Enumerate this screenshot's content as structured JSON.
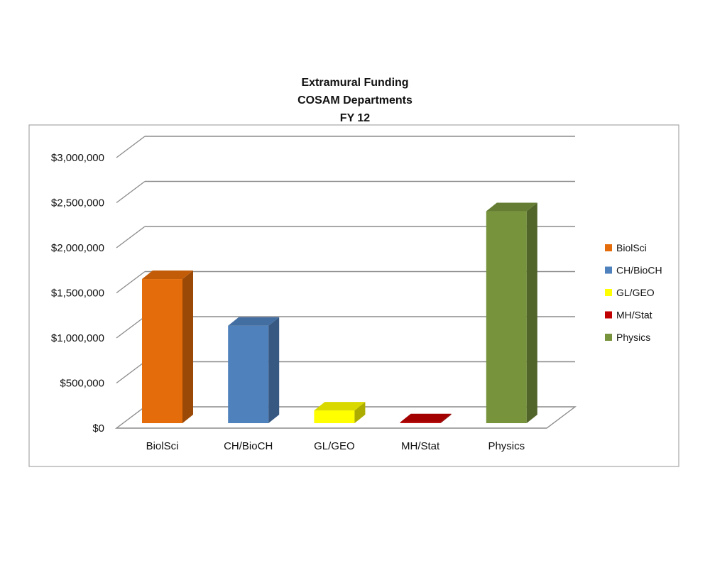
{
  "chart_data": {
    "type": "bar",
    "title_lines": [
      "Extramural Funding",
      "COSAM Departments",
      "FY 12"
    ],
    "categories": [
      "BiolSci",
      "CH/BioCH",
      "GL/GEO",
      "MH/Stat",
      "Physics"
    ],
    "values": [
      1700000,
      1150000,
      150000,
      10000,
      2500000
    ],
    "colors": [
      "#E46C0A",
      "#4F81BD",
      "#FFFF00",
      "#C00000",
      "#77933C"
    ],
    "ylim": [
      0,
      3000000
    ],
    "yticks": [
      0,
      500000,
      1000000,
      1500000,
      2000000,
      2500000,
      3000000
    ],
    "ytick_labels": [
      "$0",
      "$500,000",
      "$1,000,000",
      "$1,500,000",
      "$2,000,000",
      "$2,500,000",
      "$3,000,000"
    ],
    "xlabel": "",
    "ylabel": "",
    "grid": true,
    "style": "3d-column",
    "legend": {
      "position": "right",
      "entries": [
        "BiolSci",
        "CH/BioCH",
        "GL/GEO",
        "MH/Stat",
        "Physics"
      ]
    }
  }
}
